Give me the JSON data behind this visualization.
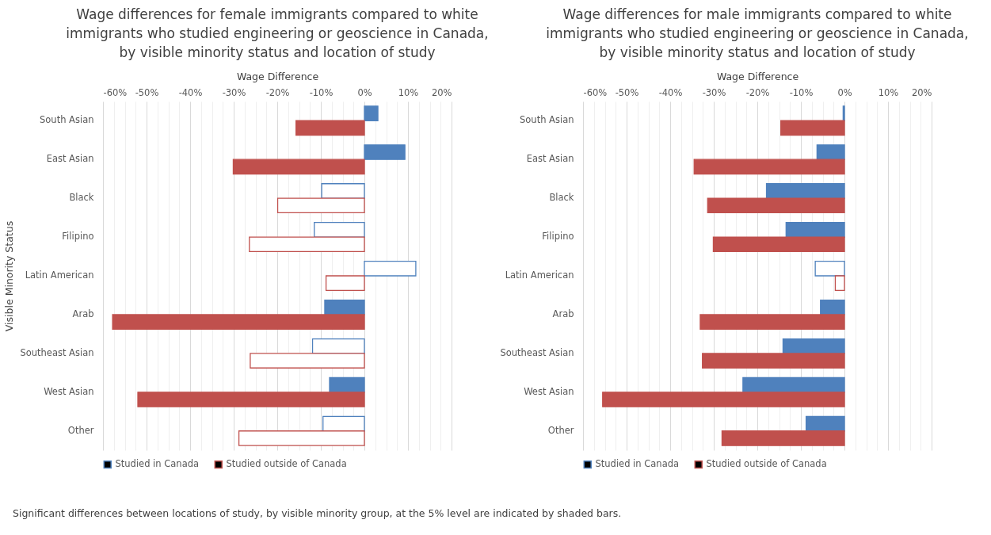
{
  "chart_data": [
    {
      "type": "bar",
      "orientation": "horizontal",
      "title": "Wage differences for female immigrants compared to white immigrants who studied engineering or geoscience in Canada, by visible minority status and location of study",
      "xlabel": "Wage Difference",
      "ylabel": "Visible Minority Status",
      "categories": [
        "South Asian",
        "East Asian",
        "Black",
        "Filipino",
        "Latin American",
        "Arab",
        "Southeast Asian",
        "West Asian",
        "Other"
      ],
      "series": [
        {
          "name": "Studied in Canada",
          "color": "#4f81bd",
          "colors": [
            "#4f81bd",
            "#4f81bd",
            "#ffffff",
            "#ffffff",
            "#ffffff",
            "#4f81bd",
            "#ffffff",
            "#4f81bd",
            "#ffffff"
          ],
          "values": [
            3.1,
            9.3,
            -9.8,
            -11.5,
            11.8,
            -9.1,
            -11.9,
            -8.0,
            -9.5
          ]
        },
        {
          "name": "Studied outside of Canada",
          "color": "#c0504d",
          "colors": [
            "#c0504d",
            "#c0504d",
            "#ffffff",
            "#ffffff",
            "#ffffff",
            "#c0504d",
            "#ffffff",
            "#c0504d",
            "#ffffff"
          ],
          "values": [
            -15.7,
            -30.1,
            -19.9,
            -26.4,
            -8.8,
            -57.8,
            -26.2,
            -52.0,
            -28.8
          ]
        }
      ],
      "xlim": [
        -60,
        20
      ],
      "xticks": [
        {
          "value": -60,
          "label": "-60%"
        },
        {
          "value": -57.5,
          "label": null
        },
        {
          "value": -55,
          "label": null
        },
        {
          "value": -52.5,
          "label": null
        },
        {
          "value": -50,
          "label": "-50%"
        },
        {
          "value": -47.5,
          "label": null
        },
        {
          "value": -45,
          "label": null
        },
        {
          "value": -42.5,
          "label": null
        },
        {
          "value": -40,
          "label": "-40%"
        },
        {
          "value": -37.5,
          "label": null
        },
        {
          "value": -35,
          "label": null
        },
        {
          "value": -32.5,
          "label": null
        },
        {
          "value": -30,
          "label": "-30%"
        },
        {
          "value": -27.5,
          "label": null
        },
        {
          "value": -25,
          "label": null
        },
        {
          "value": -22.5,
          "label": null
        },
        {
          "value": -20,
          "label": "-20%"
        },
        {
          "value": -17.5,
          "label": null
        },
        {
          "value": -15,
          "label": null
        },
        {
          "value": -12.5,
          "label": null
        },
        {
          "value": -10,
          "label": "-10%"
        },
        {
          "value": -7.5,
          "label": null
        },
        {
          "value": -5,
          "label": null
        },
        {
          "value": -2.5,
          "label": null
        },
        {
          "value": 0,
          "label": "0%"
        },
        {
          "value": 2.5,
          "label": null
        },
        {
          "value": 5,
          "label": null
        },
        {
          "value": 7.5,
          "label": null
        },
        {
          "value": 10,
          "label": "10%"
        },
        {
          "value": 12.5,
          "label": null
        },
        {
          "value": 15,
          "label": null
        },
        {
          "value": 17.5,
          "label": null
        },
        {
          "value": 20,
          "label": "20%"
        }
      ],
      "grid": "x",
      "legend": "bottom",
      "annotations": [
        "Significant differences between locations of study, by visible minority group, at the 5% level are indicated by shaded bars."
      ]
    },
    {
      "type": "bar",
      "orientation": "horizontal",
      "title": "Wage differences for male immigrants compared to white immigrants who studied engineering or geoscience in Canada, by visible minority status and location of study",
      "xlabel": "Wage Difference",
      "categories": [
        "South Asian",
        "East Asian",
        "Black",
        "Filipino",
        "Latin American",
        "Arab",
        "Southeast Asian",
        "West Asian",
        "Other"
      ],
      "series": [
        {
          "name": "Studied in Canada",
          "color": "#4f81bd",
          "colors": [
            "#4f81bd",
            "#4f81bd",
            "#4f81bd",
            "#4f81bd",
            "#ffffff",
            "#4f81bd",
            "#4f81bd",
            "#4f81bd",
            "#4f81bd"
          ],
          "values": [
            -0.3,
            -6.3,
            -17.9,
            -13.4,
            -6.7,
            -5.5,
            -14.1,
            -23.3,
            -8.8
          ]
        },
        {
          "name": "Studied outside of Canada",
          "color": "#c0504d",
          "colors": [
            "#c0504d",
            "#c0504d",
            "#c0504d",
            "#c0504d",
            "#ffffff",
            "#c0504d",
            "#c0504d",
            "#c0504d",
            "#c0504d"
          ],
          "values": [
            -14.6,
            -34.5,
            -31.4,
            -30.1,
            -2.1,
            -33.1,
            -32.6,
            -55.5,
            -28.1
          ]
        }
      ],
      "xlim": [
        -60,
        20
      ],
      "xticks": [
        {
          "value": -60,
          "label": "-60%"
        },
        {
          "value": -57.5,
          "label": null
        },
        {
          "value": -55,
          "label": null
        },
        {
          "value": -52.5,
          "label": null
        },
        {
          "value": -50,
          "label": "-50%"
        },
        {
          "value": -47.5,
          "label": null
        },
        {
          "value": -45,
          "label": null
        },
        {
          "value": -42.5,
          "label": null
        },
        {
          "value": -40,
          "label": "-40%"
        },
        {
          "value": -37.5,
          "label": null
        },
        {
          "value": -35,
          "label": null
        },
        {
          "value": -32.5,
          "label": null
        },
        {
          "value": -30,
          "label": "-30%"
        },
        {
          "value": -27.5,
          "label": null
        },
        {
          "value": -25,
          "label": null
        },
        {
          "value": -22.5,
          "label": null
        },
        {
          "value": -20,
          "label": "-20%"
        },
        {
          "value": -17.5,
          "label": null
        },
        {
          "value": -15,
          "label": null
        },
        {
          "value": -12.5,
          "label": null
        },
        {
          "value": -10,
          "label": "-10%"
        },
        {
          "value": -7.5,
          "label": null
        },
        {
          "value": -5,
          "label": null
        },
        {
          "value": -2.5,
          "label": null
        },
        {
          "value": 0,
          "label": "0%"
        },
        {
          "value": 2.5,
          "label": null
        },
        {
          "value": 5,
          "label": null
        },
        {
          "value": 7.5,
          "label": null
        },
        {
          "value": 10,
          "label": "10%"
        },
        {
          "value": 12.5,
          "label": null
        },
        {
          "value": 15,
          "label": null
        },
        {
          "value": 17.5,
          "label": null
        },
        {
          "value": 20,
          "label": "20%"
        }
      ],
      "grid": "x",
      "legend": "bottom"
    }
  ]
}
